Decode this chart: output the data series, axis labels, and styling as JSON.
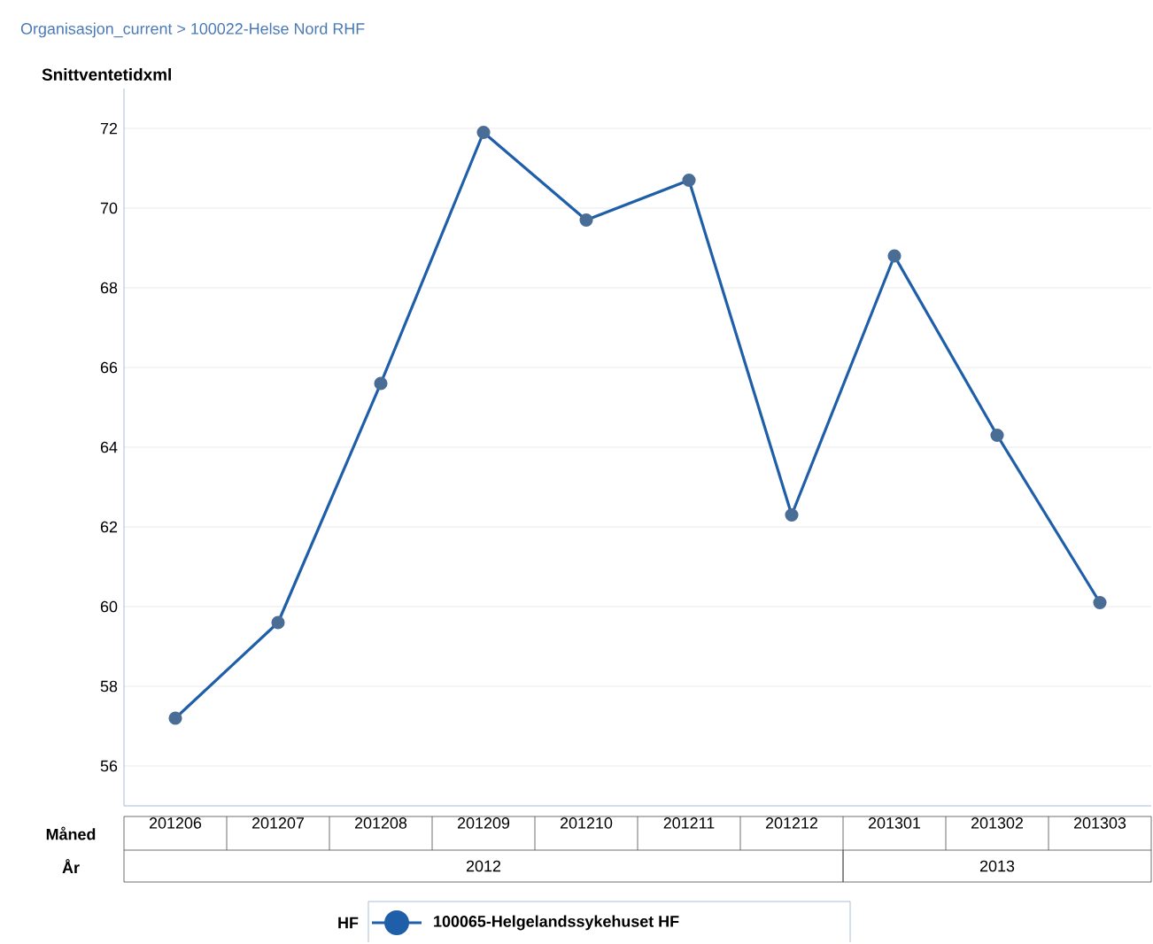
{
  "chart_data": {
    "type": "line",
    "title": "Organisasjon_current  >  100022-Helse Nord RHF",
    "ylabel": "Snittventetidxml",
    "xlabel": "Måned",
    "categories": [
      "201206",
      "201207",
      "201208",
      "201209",
      "201210",
      "201211",
      "201212",
      "201301",
      "201302",
      "201303"
    ],
    "series": [
      {
        "name": "100065-Helgelandssykehuset HF",
        "color": "#1f5ea8",
        "values": [
          57.2,
          59.6,
          65.6,
          71.9,
          69.7,
          70.7,
          62.3,
          68.8,
          64.3,
          60.1
        ]
      }
    ],
    "legend_title": "HF",
    "legend": "bottom",
    "marker": "circle",
    "line_style": "solid",
    "grid": "y",
    "ylim": [
      55,
      73
    ],
    "yticks": [
      56,
      58,
      60,
      62,
      64,
      66,
      68,
      70,
      72
    ],
    "annotations": [
      "År",
      "2012",
      "2013"
    ]
  }
}
